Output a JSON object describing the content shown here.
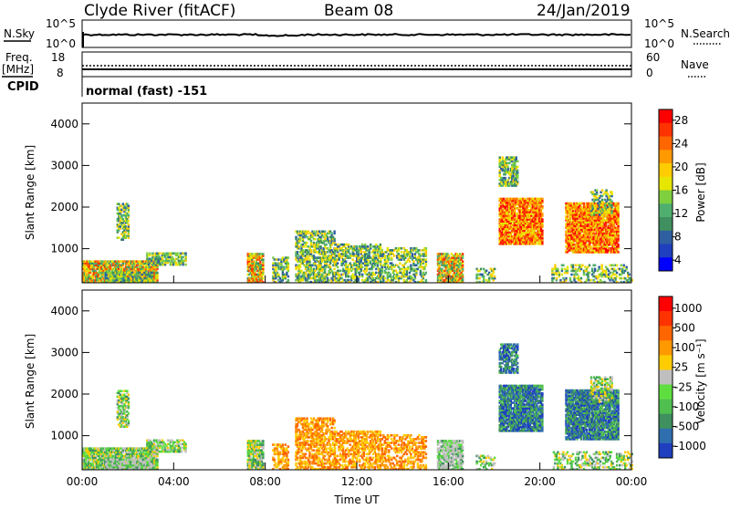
{
  "header": {
    "station": "Clyde River (fitACF)",
    "beam": "Beam 08",
    "date": "24/Jan/2019"
  },
  "nsky_panel": {
    "left_label": "N.Sky",
    "right_label": "N.Search",
    "left_ticks": [
      "10^5",
      "10^0"
    ],
    "right_ticks": [
      "10^5",
      "10^0"
    ]
  },
  "freq_panel": {
    "left_label_line1": "Freq.",
    "left_label_line2": "[MHz]",
    "right_label": "Nave",
    "left_ticks": [
      "18",
      "8"
    ],
    "right_ticks": [
      "60",
      "0"
    ],
    "cpid_label": "CPID",
    "cpid_text": "normal (fast) -151"
  },
  "chart_data": [
    {
      "type": "heatmap",
      "name": "power",
      "ylabel": "Slant Range [km]",
      "yticks": [
        "1000",
        "2000",
        "3000",
        "4000"
      ],
      "ylim": [
        180,
        4500
      ],
      "colorbar_label": "Power [dB]",
      "colorbar_ticks": [
        "4",
        "8",
        "12",
        "16",
        "20",
        "24",
        "28"
      ],
      "colorbar_colors": [
        "#0000ff",
        "#1f3fbf",
        "#2f5fa0",
        "#3f8f5f",
        "#4faf6f",
        "#7fcf3f",
        "#e6e600",
        "#ffcc00",
        "#ff9900",
        "#ff6600",
        "#ff3300",
        "#ff0000"
      ],
      "xticks": [
        "00:00",
        "04:00",
        "08:00",
        "12:00",
        "16:00",
        "20:00",
        "00:00"
      ],
      "xlim": [
        0,
        24
      ]
    },
    {
      "type": "heatmap",
      "name": "velocity",
      "ylabel": "Slant Range [km]",
      "yticks": [
        "1000",
        "2000",
        "3000",
        "4000"
      ],
      "ylim": [
        180,
        4500
      ],
      "colorbar_label": "Velocity [m s⁻¹]",
      "colorbar_ticks": [
        "1000",
        "500",
        "100",
        "25",
        "-25",
        "-100",
        "-500",
        "-1000"
      ],
      "colorbar_colors": [
        "#1f3fbf",
        "#2f6faf",
        "#3f8f5f",
        "#4fbf4f",
        "#5fdf3f",
        "#bfbfbf",
        "#ffcc00",
        "#ff9900",
        "#ff6600",
        "#ff3300",
        "#ff0000"
      ],
      "xticks": [
        "00:00",
        "04:00",
        "08:00",
        "12:00",
        "16:00",
        "20:00",
        "00:00"
      ],
      "xlim": [
        0,
        24
      ],
      "xlabel": "Time UT"
    }
  ],
  "colors": {
    "ground_scatter": "#bfbfbf"
  }
}
